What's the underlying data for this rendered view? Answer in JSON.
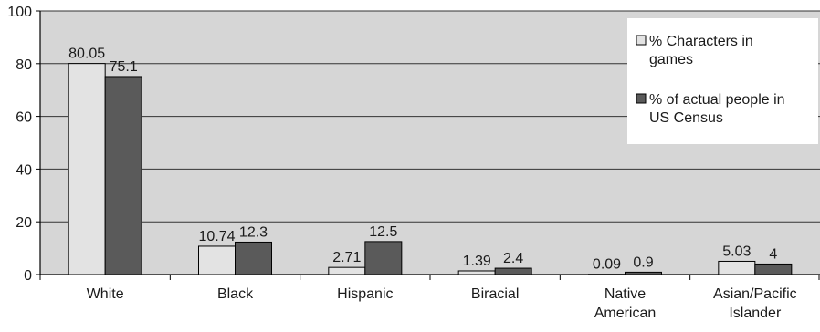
{
  "chart_data": {
    "type": "bar",
    "categories": [
      [
        "White"
      ],
      [
        "Black"
      ],
      [
        "Hispanic"
      ],
      [
        "Biracial"
      ],
      [
        "Native",
        "American"
      ],
      [
        "Asian/Pacific",
        "Islander"
      ]
    ],
    "series": [
      {
        "name": [
          "% Characters in",
          "games"
        ],
        "values": [
          80.05,
          10.74,
          2.71,
          1.39,
          0.09,
          5.03
        ],
        "labels": [
          "80.05",
          "10.74",
          "2.71",
          "1.39",
          "0.09",
          "5.03"
        ],
        "color": "#e3e3e3"
      },
      {
        "name": [
          "% of actual people in",
          "US Census"
        ],
        "values": [
          75.1,
          12.3,
          12.5,
          2.4,
          0.9,
          4
        ],
        "labels": [
          "75.1",
          "12.3",
          "12.5",
          "2.4",
          "0.9",
          "4"
        ],
        "color": "#5a5a5a"
      }
    ],
    "yticks": [
      0,
      20,
      40,
      60,
      80,
      100
    ],
    "ylim": [
      0,
      100
    ],
    "grid": true,
    "legend_position": "top-right",
    "plot_background": "#d6d6d6",
    "gridline_color": "#333333",
    "title": "",
    "xlabel": "",
    "ylabel": ""
  }
}
